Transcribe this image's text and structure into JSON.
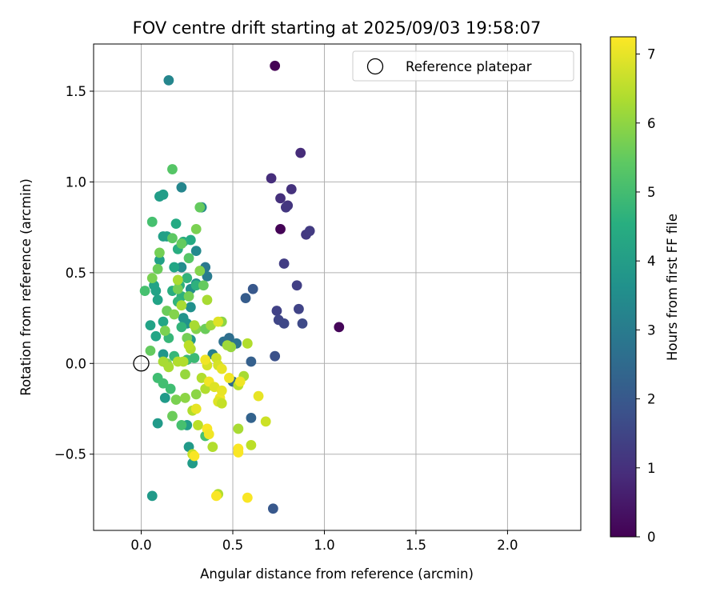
{
  "chart_data": {
    "type": "scatter",
    "title": "FOV centre drift starting at 2025/09/03 19:58:07",
    "xlabel": "Angular distance from reference (arcmin)",
    "ylabel": "Rotation from reference (arcmin)",
    "xlim": [
      -0.26,
      2.4
    ],
    "ylim": [
      -0.92,
      1.76
    ],
    "x_ticks": [
      0.0,
      0.5,
      1.0,
      1.5,
      2.0
    ],
    "x_tick_labels": [
      "0.0",
      "0.5",
      "1.0",
      "1.5",
      "2.0"
    ],
    "y_ticks": [
      -0.5,
      0.0,
      0.5,
      1.0,
      1.5
    ],
    "y_tick_labels": [
      "−0.5",
      "0.0",
      "0.5",
      "1.0",
      "1.5"
    ],
    "grid": true,
    "legend": {
      "position": "top-right",
      "entries": [
        {
          "label": "Reference platepar",
          "marker": "open-circle"
        }
      ]
    },
    "reference_point": {
      "x": 0.0,
      "y": 0.0
    },
    "colorbar": {
      "label": "Hours from first FF file",
      "min": 0,
      "max": 7.25,
      "colormap": "viridis",
      "ticks": [
        0,
        1,
        2,
        3,
        4,
        5,
        6,
        7
      ],
      "tick_labels": [
        "0",
        "1",
        "2",
        "3",
        "4",
        "5",
        "6",
        "7"
      ]
    },
    "points": [
      [
        0.73,
        1.64,
        0.0
      ],
      [
        0.76,
        0.74,
        0.05
      ],
      [
        1.08,
        0.2,
        0.1
      ],
      [
        0.87,
        1.16,
        0.9
      ],
      [
        0.71,
        1.02,
        0.95
      ],
      [
        0.76,
        0.91,
        1.0
      ],
      [
        0.82,
        0.96,
        1.05
      ],
      [
        0.8,
        0.87,
        1.1
      ],
      [
        0.79,
        0.86,
        1.15
      ],
      [
        0.9,
        0.71,
        1.2
      ],
      [
        0.92,
        0.73,
        1.25
      ],
      [
        0.78,
        0.55,
        1.3
      ],
      [
        0.85,
        0.43,
        1.35
      ],
      [
        0.74,
        0.29,
        1.4
      ],
      [
        0.86,
        0.3,
        1.45
      ],
      [
        0.75,
        0.24,
        1.5
      ],
      [
        0.78,
        0.22,
        1.55
      ],
      [
        0.88,
        0.22,
        1.6
      ],
      [
        0.73,
        0.04,
        1.8
      ],
      [
        0.72,
        -0.8,
        2.0
      ],
      [
        0.61,
        0.41,
        2.0
      ],
      [
        0.57,
        0.36,
        2.1
      ],
      [
        0.6,
        0.01,
        2.2
      ],
      [
        0.6,
        -0.3,
        2.3
      ],
      [
        0.5,
        -0.1,
        2.5
      ],
      [
        0.48,
        0.14,
        2.6
      ],
      [
        0.45,
        0.12,
        2.7
      ],
      [
        0.52,
        0.11,
        2.8
      ],
      [
        0.35,
        0.53,
        2.9
      ],
      [
        0.36,
        0.48,
        3.0
      ],
      [
        0.39,
        0.05,
        3.1
      ],
      [
        0.15,
        1.56,
        3.3
      ],
      [
        0.22,
        0.97,
        3.3
      ],
      [
        0.33,
        0.86,
        3.4
      ],
      [
        0.3,
        0.62,
        3.4
      ],
      [
        0.22,
        0.53,
        3.5
      ],
      [
        0.27,
        0.41,
        3.5
      ],
      [
        0.3,
        0.44,
        3.6
      ],
      [
        0.27,
        0.31,
        3.6
      ],
      [
        0.23,
        0.25,
        3.7
      ],
      [
        0.25,
        0.22,
        3.7
      ],
      [
        0.27,
        0.13,
        3.8
      ],
      [
        0.12,
        0.05,
        3.8
      ],
      [
        0.13,
        -0.19,
        3.9
      ],
      [
        0.09,
        -0.33,
        3.9
      ],
      [
        0.06,
        -0.73,
        3.9
      ],
      [
        0.26,
        -0.46,
        3.9
      ],
      [
        0.28,
        -0.55,
        3.95
      ],
      [
        0.25,
        -0.34,
        4.0
      ],
      [
        0.1,
        0.92,
        4.0
      ],
      [
        0.12,
        0.93,
        4.0
      ],
      [
        0.1,
        0.57,
        4.1
      ],
      [
        0.12,
        0.7,
        4.1
      ],
      [
        0.14,
        0.7,
        4.1
      ],
      [
        0.08,
        0.4,
        4.2
      ],
      [
        0.07,
        0.43,
        4.2
      ],
      [
        0.09,
        0.35,
        4.2
      ],
      [
        0.05,
        0.21,
        4.2
      ],
      [
        0.08,
        0.15,
        4.3
      ],
      [
        0.12,
        0.23,
        4.3
      ],
      [
        0.18,
        0.53,
        4.3
      ],
      [
        0.19,
        0.77,
        4.4
      ],
      [
        0.27,
        0.68,
        4.4
      ],
      [
        0.23,
        0.67,
        4.5
      ],
      [
        0.2,
        0.63,
        4.5
      ],
      [
        0.17,
        0.4,
        4.5
      ],
      [
        0.21,
        0.43,
        4.6
      ],
      [
        0.22,
        0.37,
        4.6
      ],
      [
        0.3,
        0.43,
        4.6
      ],
      [
        0.25,
        0.47,
        4.7
      ],
      [
        0.2,
        0.34,
        4.7
      ],
      [
        0.22,
        0.2,
        4.7
      ],
      [
        0.15,
        0.14,
        4.8
      ],
      [
        0.18,
        0.04,
        4.8
      ],
      [
        0.25,
        0.02,
        4.9
      ],
      [
        0.29,
        0.03,
        4.9
      ],
      [
        0.16,
        -0.14,
        5.0
      ],
      [
        0.09,
        -0.08,
        5.0
      ],
      [
        0.12,
        -0.11,
        5.05
      ],
      [
        0.22,
        -0.34,
        5.1
      ],
      [
        0.35,
        -0.4,
        5.1
      ],
      [
        0.02,
        0.4,
        5.1
      ],
      [
        0.06,
        0.78,
        5.1
      ],
      [
        0.17,
        1.07,
        5.3
      ],
      [
        0.17,
        0.69,
        5.4
      ],
      [
        0.09,
        0.52,
        5.6
      ],
      [
        0.1,
        0.61,
        5.7
      ],
      [
        0.06,
        0.47,
        5.8
      ],
      [
        0.05,
        0.07,
        5.5
      ],
      [
        0.22,
        0.66,
        5.5
      ],
      [
        0.26,
        0.58,
        5.3
      ],
      [
        0.32,
        0.86,
        5.5
      ],
      [
        0.34,
        0.43,
        5.5
      ],
      [
        0.32,
        0.51,
        5.9
      ],
      [
        0.3,
        0.74,
        5.8
      ],
      [
        0.26,
        0.37,
        5.7
      ],
      [
        0.2,
        0.41,
        5.7
      ],
      [
        0.14,
        0.29,
        5.6
      ],
      [
        0.18,
        0.27,
        5.9
      ],
      [
        0.13,
        0.18,
        5.8
      ],
      [
        0.25,
        0.14,
        5.7
      ],
      [
        0.3,
        0.19,
        5.9
      ],
      [
        0.35,
        0.19,
        5.6
      ],
      [
        0.14,
        0.0,
        5.9
      ],
      [
        0.19,
        -0.2,
        5.8
      ],
      [
        0.17,
        -0.29,
        5.6
      ],
      [
        0.24,
        -0.19,
        6.0
      ],
      [
        0.3,
        -0.17,
        6.0
      ],
      [
        0.24,
        -0.06,
        6.1
      ],
      [
        0.44,
        0.23,
        6.0
      ],
      [
        0.49,
        0.09,
        6.1
      ],
      [
        0.47,
        0.1,
        6.2
      ],
      [
        0.38,
        0.21,
        6.2
      ],
      [
        0.36,
        0.35,
        6.3
      ],
      [
        0.29,
        0.21,
        6.3
      ],
      [
        0.2,
        0.46,
        6.3
      ],
      [
        0.22,
        0.32,
        6.3
      ],
      [
        0.12,
        0.01,
        6.3
      ],
      [
        0.15,
        -0.02,
        6.3
      ],
      [
        0.2,
        0.01,
        6.4
      ],
      [
        0.23,
        0.01,
        6.4
      ],
      [
        0.27,
        0.08,
        6.4
      ],
      [
        0.26,
        0.1,
        6.5
      ],
      [
        0.33,
        -0.08,
        6.4
      ],
      [
        0.35,
        -0.14,
        6.4
      ],
      [
        0.28,
        -0.26,
        6.4
      ],
      [
        0.31,
        -0.34,
        6.5
      ],
      [
        0.28,
        -0.5,
        6.6
      ],
      [
        0.39,
        -0.46,
        6.4
      ],
      [
        0.42,
        -0.72,
        6.4
      ],
      [
        0.53,
        -0.36,
        6.3
      ],
      [
        0.58,
        0.11,
        6.4
      ],
      [
        0.56,
        -0.07,
        6.3
      ],
      [
        0.53,
        -0.12,
        6.5
      ],
      [
        0.6,
        -0.45,
        6.5
      ],
      [
        0.68,
        -0.32,
        6.7
      ],
      [
        0.64,
        -0.18,
        7.0
      ],
      [
        0.42,
        0.23,
        6.9
      ],
      [
        0.41,
        0.03,
        6.7
      ],
      [
        0.36,
        -0.01,
        6.8
      ],
      [
        0.42,
        -0.01,
        6.8
      ],
      [
        0.44,
        -0.03,
        7.0
      ],
      [
        0.35,
        0.02,
        7.1
      ],
      [
        0.37,
        -0.1,
        7.1
      ],
      [
        0.4,
        -0.13,
        6.9
      ],
      [
        0.43,
        -0.19,
        7.1
      ],
      [
        0.44,
        -0.15,
        7.0
      ],
      [
        0.42,
        -0.21,
        6.9
      ],
      [
        0.48,
        -0.08,
        7.1
      ],
      [
        0.54,
        -0.1,
        7.1
      ],
      [
        0.3,
        -0.25,
        7.0
      ],
      [
        0.36,
        -0.36,
        7.2
      ],
      [
        0.37,
        -0.39,
        7.1
      ],
      [
        0.29,
        -0.51,
        7.2
      ],
      [
        0.41,
        -0.73,
        7.2
      ],
      [
        0.58,
        -0.74,
        7.2
      ],
      [
        0.53,
        -0.47,
        7.2
      ],
      [
        0.53,
        -0.49,
        7.2
      ],
      [
        0.44,
        -0.22,
        6.6
      ]
    ]
  }
}
